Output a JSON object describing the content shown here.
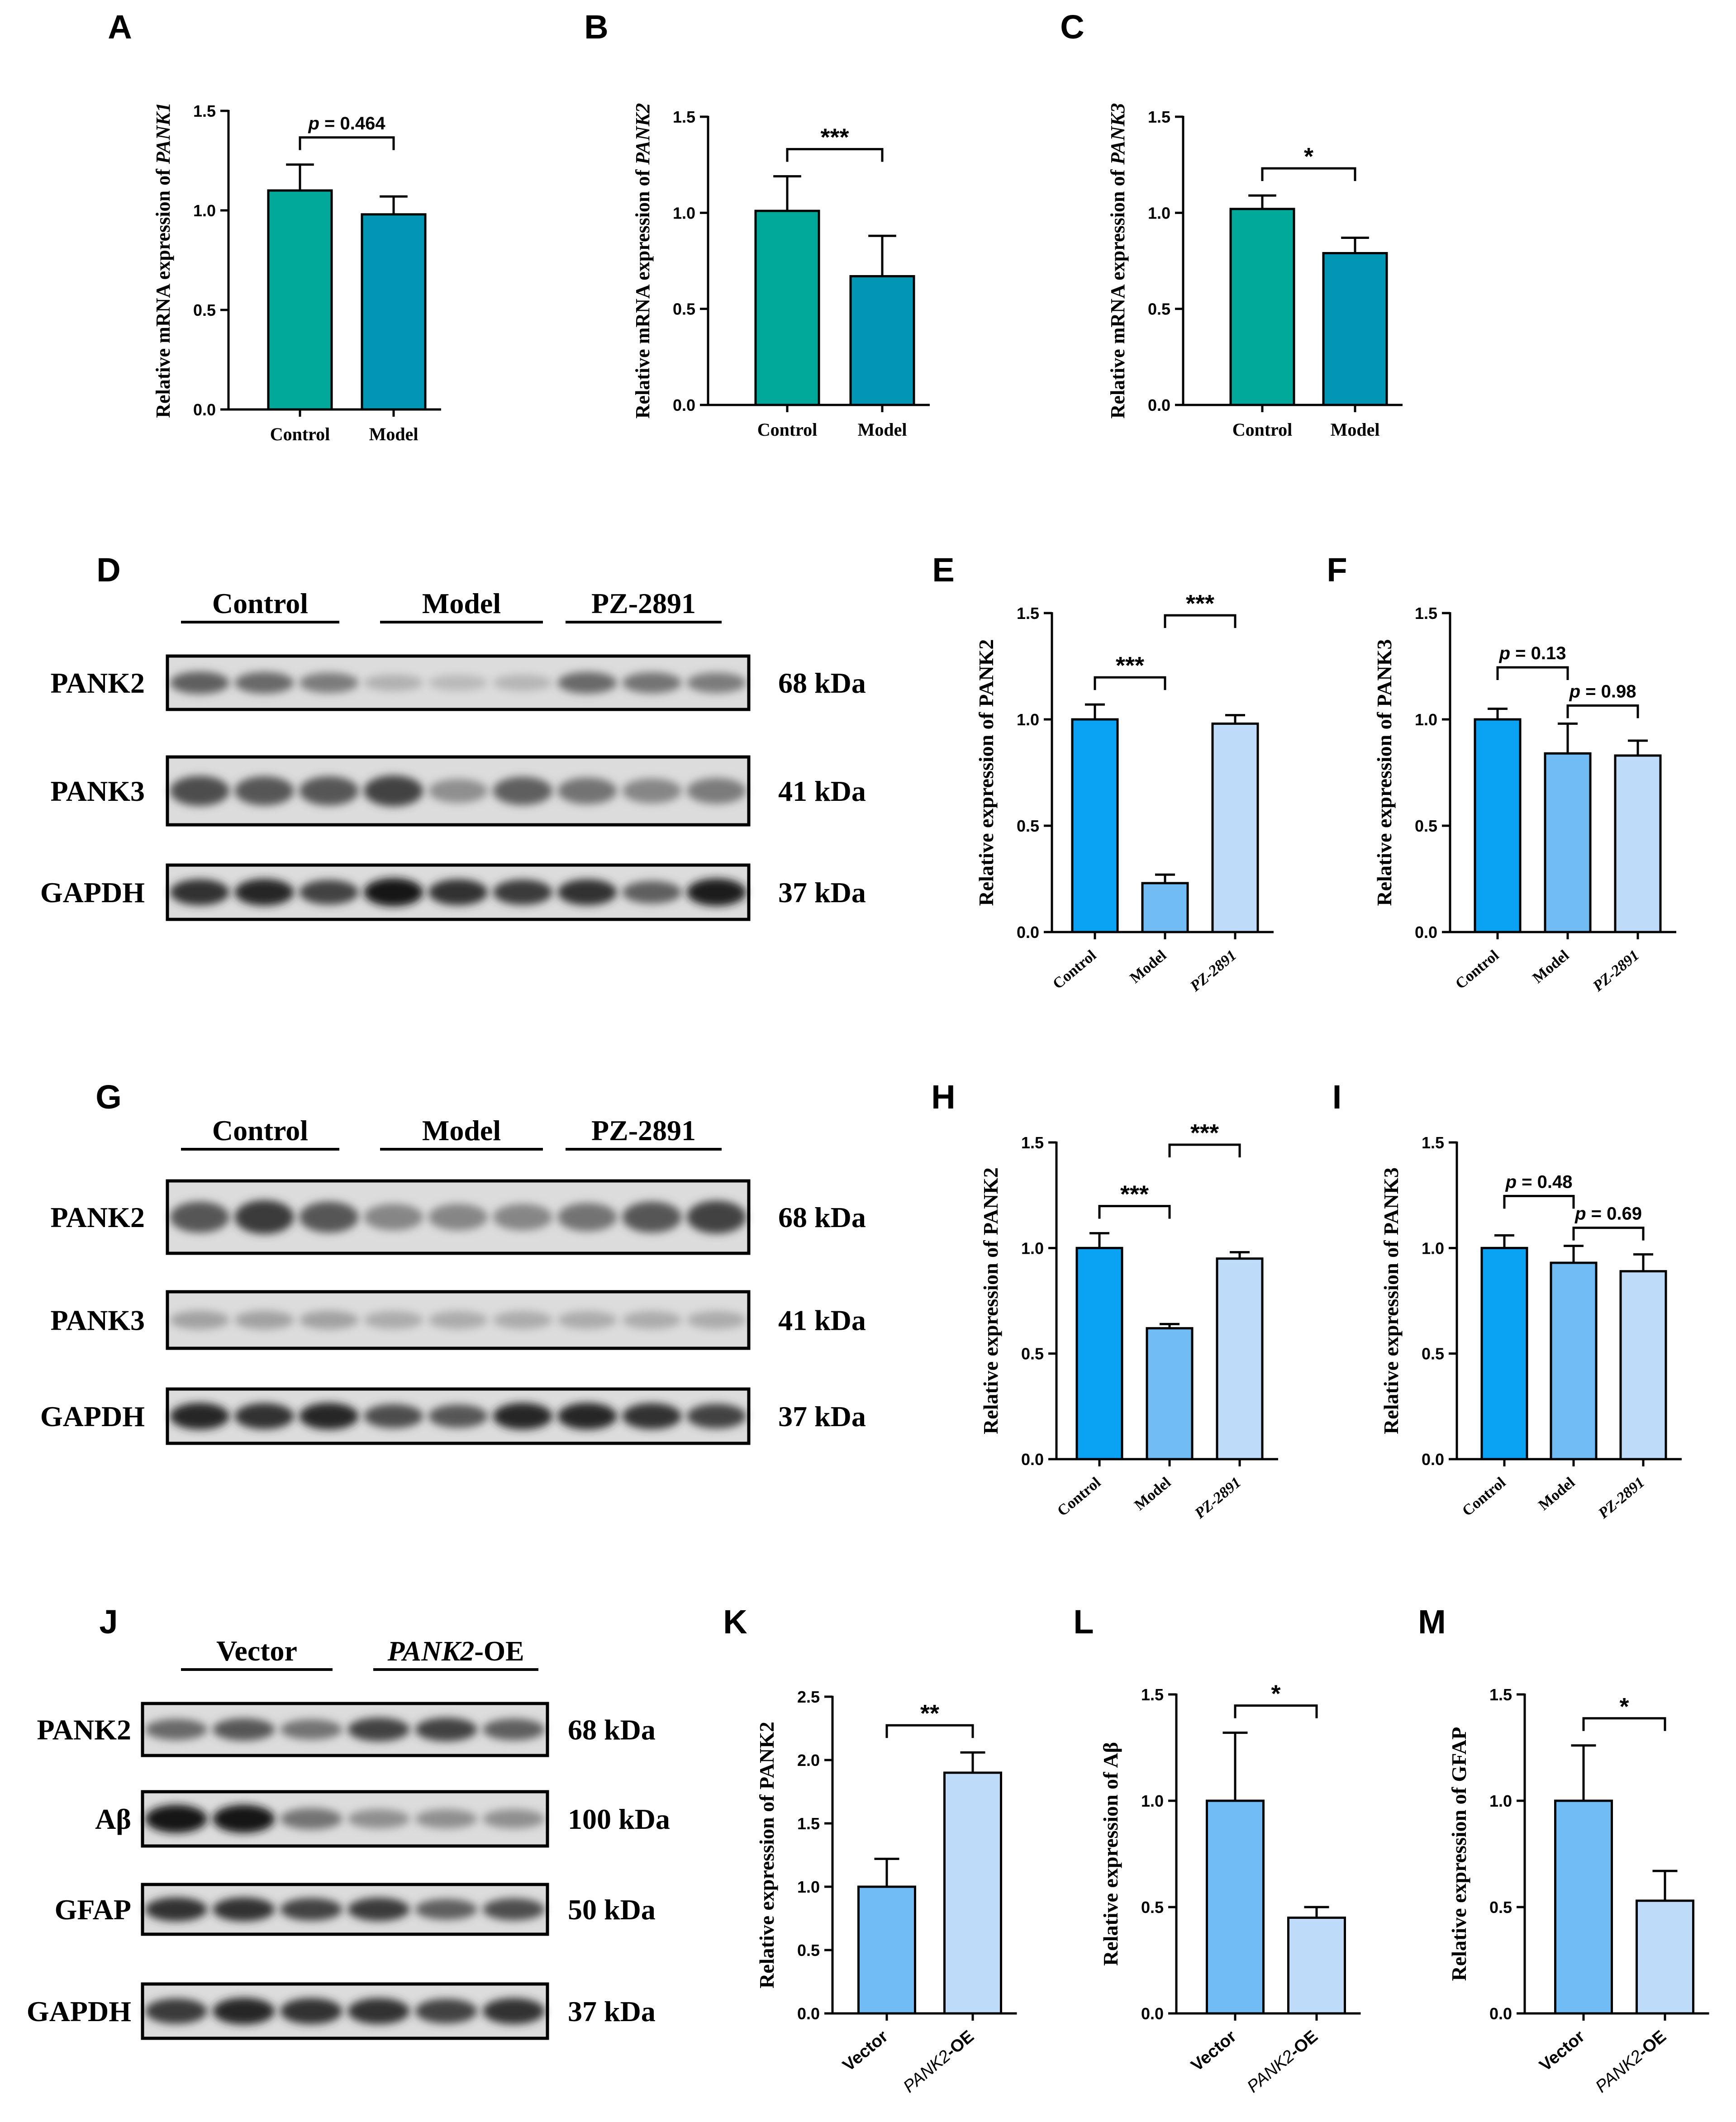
{
  "figure": {
    "background": "#ffffff"
  },
  "colors": {
    "teal": "#00A99A",
    "teal_blue": "#0096B4",
    "blue": "#0AA3F4",
    "mid_blue": "#72BCF6",
    "light_blue": "#BEDCFA",
    "axis": "#000000"
  },
  "chart_data": [
    {
      "panel": "A",
      "type": "bar",
      "categories": [
        "Control",
        "Model"
      ],
      "values": [
        1.1,
        0.98
      ],
      "errors": [
        0.13,
        0.09
      ],
      "ylabel_prefix": "Relative mRNA expression of ",
      "ylabel_gene": "PANK1",
      "ylim": [
        0,
        1.5
      ],
      "yticks": [
        "0.0",
        "0.5",
        "1.0",
        "1.5"
      ],
      "colors": [
        "#00A99A",
        "#0096B4"
      ],
      "significance": [
        {
          "from": 0,
          "to": 1,
          "label": "p = 0.464"
        }
      ]
    },
    {
      "panel": "B",
      "type": "bar",
      "categories": [
        "Control",
        "Model"
      ],
      "values": [
        1.01,
        0.67
      ],
      "errors": [
        0.18,
        0.21
      ],
      "ylabel_prefix": "Relative mRNA expression of ",
      "ylabel_gene": "PANK2",
      "ylim": [
        0,
        1.5
      ],
      "yticks": [
        "0.0",
        "0.5",
        "1.0",
        "1.5"
      ],
      "colors": [
        "#00A99A",
        "#0096B4"
      ],
      "significance": [
        {
          "from": 0,
          "to": 1,
          "label": "***"
        }
      ]
    },
    {
      "panel": "C",
      "type": "bar",
      "categories": [
        "Control",
        "Model"
      ],
      "values": [
        1.02,
        0.79
      ],
      "errors": [
        0.07,
        0.08
      ],
      "ylabel_prefix": "Relative mRNA expression of ",
      "ylabel_gene": "PANK3",
      "ylim": [
        0,
        1.5
      ],
      "yticks": [
        "0.0",
        "0.5",
        "1.0",
        "1.5"
      ],
      "colors": [
        "#00A99A",
        "#0096B4"
      ],
      "significance": [
        {
          "from": 0,
          "to": 1,
          "label": "*"
        }
      ]
    },
    {
      "panel": "E",
      "type": "bar",
      "categories": [
        "Control",
        "Model",
        "PZ-2891"
      ],
      "values": [
        1.0,
        0.23,
        0.98
      ],
      "errors": [
        0.07,
        0.04,
        0.04
      ],
      "ylabel": "Relative expression of PANK2",
      "ylim": [
        0,
        1.5
      ],
      "yticks": [
        "0.0",
        "0.5",
        "1.0",
        "1.5"
      ],
      "colors": [
        "#0AA3F4",
        "#72BCF6",
        "#BEDCFA"
      ],
      "significance": [
        {
          "from": 0,
          "to": 1,
          "label": "***"
        },
        {
          "from": 1,
          "to": 2,
          "label": "***"
        }
      ]
    },
    {
      "panel": "F",
      "type": "bar",
      "categories": [
        "Control",
        "Model",
        "PZ-2891"
      ],
      "values": [
        1.0,
        0.84,
        0.83
      ],
      "errors": [
        0.05,
        0.14,
        0.07
      ],
      "ylabel": "Relative expression of PANK3",
      "ylim": [
        0,
        1.5
      ],
      "yticks": [
        "0.0",
        "0.5",
        "1.0",
        "1.5"
      ],
      "colors": [
        "#0AA3F4",
        "#72BCF6",
        "#BEDCFA"
      ],
      "significance": [
        {
          "from": 0,
          "to": 1,
          "label": "p = 0.13"
        },
        {
          "from": 1,
          "to": 2,
          "label": "p = 0.98"
        }
      ]
    },
    {
      "panel": "H",
      "type": "bar",
      "categories": [
        "Control",
        "Model",
        "PZ-2891"
      ],
      "values": [
        1.0,
        0.62,
        0.95
      ],
      "errors": [
        0.07,
        0.02,
        0.03
      ],
      "ylabel": "Relative expression of PANK2",
      "ylim": [
        0,
        1.5
      ],
      "yticks": [
        "0.0",
        "0.5",
        "1.0",
        "1.5"
      ],
      "colors": [
        "#0AA3F4",
        "#72BCF6",
        "#BEDCFA"
      ],
      "significance": [
        {
          "from": 0,
          "to": 1,
          "label": "***"
        },
        {
          "from": 1,
          "to": 2,
          "label": "***"
        }
      ]
    },
    {
      "panel": "I",
      "type": "bar",
      "categories": [
        "Control",
        "Model",
        "PZ-2891"
      ],
      "values": [
        1.0,
        0.93,
        0.89
      ],
      "errors": [
        0.06,
        0.08,
        0.08
      ],
      "ylabel": "Relative expression of PANK3",
      "ylim": [
        0,
        1.5
      ],
      "yticks": [
        "0.0",
        "0.5",
        "1.0",
        "1.5"
      ],
      "colors": [
        "#0AA3F4",
        "#72BCF6",
        "#BEDCFA"
      ],
      "significance": [
        {
          "from": 0,
          "to": 1,
          "label": "p = 0.48"
        },
        {
          "from": 1,
          "to": 2,
          "label": "p = 0.69"
        }
      ]
    },
    {
      "panel": "K",
      "type": "bar",
      "categories": [
        "Vector",
        "PANK2-OE"
      ],
      "values": [
        1.0,
        1.9
      ],
      "errors": [
        0.22,
        0.16
      ],
      "ylabel": "Relative expression of PANK2",
      "ylim": [
        0,
        2.5
      ],
      "yticks": [
        "0.0",
        "0.5",
        "1.0",
        "1.5",
        "2.0",
        "2.5"
      ],
      "colors": [
        "#72BCF6",
        "#BEDCFA"
      ],
      "significance": [
        {
          "from": 0,
          "to": 1,
          "label": "**"
        }
      ]
    },
    {
      "panel": "L",
      "type": "bar",
      "categories": [
        "Vector",
        "PANK2-OE"
      ],
      "values": [
        1.0,
        0.45
      ],
      "errors": [
        0.32,
        0.05
      ],
      "ylabel": "Relative expression of Aβ",
      "ylim": [
        0,
        1.5
      ],
      "yticks": [
        "0.0",
        "0.5",
        "1.0",
        "1.5"
      ],
      "colors": [
        "#72BCF6",
        "#BEDCFA"
      ],
      "significance": [
        {
          "from": 0,
          "to": 1,
          "label": "*"
        }
      ]
    },
    {
      "panel": "M",
      "type": "bar",
      "categories": [
        "Vector",
        "PANK2-OE"
      ],
      "values": [
        1.0,
        0.53
      ],
      "errors": [
        0.26,
        0.14
      ],
      "ylabel": "Relative expression of GFAP",
      "ylim": [
        0,
        1.5
      ],
      "yticks": [
        "0.0",
        "0.5",
        "1.0",
        "1.5"
      ],
      "colors": [
        "#72BCF6",
        "#BEDCFA"
      ],
      "significance": [
        {
          "from": 0,
          "to": 1,
          "label": "*"
        }
      ]
    }
  ],
  "blots": [
    {
      "panel": "D",
      "groups": [
        "Control",
        "Model",
        "PZ-2891"
      ],
      "rows": [
        {
          "protein": "PANK2",
          "size": "68 kDa",
          "intensity": [
            0.55,
            0.5,
            0.4,
            0.12,
            0.08,
            0.1,
            0.5,
            0.45,
            0.4
          ]
        },
        {
          "protein": "PANK3",
          "size": "41 kDa",
          "intensity": [
            0.65,
            0.6,
            0.6,
            0.7,
            0.3,
            0.55,
            0.45,
            0.35,
            0.4
          ]
        },
        {
          "protein": "GAPDH",
          "size": "37 kDa",
          "intensity": [
            0.8,
            0.85,
            0.7,
            0.95,
            0.8,
            0.75,
            0.8,
            0.55,
            0.9
          ]
        }
      ]
    },
    {
      "panel": "G",
      "groups": [
        "Control",
        "Model",
        "PZ-2891"
      ],
      "rows": [
        {
          "protein": "PANK2",
          "size": "68 kDa",
          "intensity": [
            0.6,
            0.75,
            0.6,
            0.35,
            0.35,
            0.35,
            0.45,
            0.6,
            0.7
          ]
        },
        {
          "protein": "PANK3",
          "size": "41 kDa",
          "intensity": [
            0.2,
            0.2,
            0.2,
            0.15,
            0.15,
            0.15,
            0.15,
            0.15,
            0.15
          ]
        },
        {
          "protein": "GAPDH",
          "size": "37 kDa",
          "intensity": [
            0.85,
            0.8,
            0.85,
            0.65,
            0.6,
            0.85,
            0.85,
            0.8,
            0.7
          ]
        }
      ]
    },
    {
      "panel": "J",
      "groups": [
        "Vector",
        "PANK2-OE"
      ],
      "group_italic_part": [
        "",
        "PANK2"
      ],
      "group_plain_part": [
        "Vector",
        "-OE"
      ],
      "rows": [
        {
          "protein": "PANK2",
          "size": "68 kDa",
          "intensity": [
            0.5,
            0.6,
            0.45,
            0.7,
            0.7,
            0.55
          ]
        },
        {
          "protein": "Aβ",
          "size": "100 kDa",
          "intensity": [
            0.95,
            0.95,
            0.45,
            0.3,
            0.3,
            0.3
          ]
        },
        {
          "protein": "GFAP",
          "size": "50 kDa",
          "intensity": [
            0.8,
            0.8,
            0.7,
            0.75,
            0.55,
            0.65
          ]
        },
        {
          "protein": "GAPDH",
          "size": "37 kDa",
          "intensity": [
            0.75,
            0.85,
            0.8,
            0.8,
            0.7,
            0.8
          ]
        }
      ]
    }
  ]
}
